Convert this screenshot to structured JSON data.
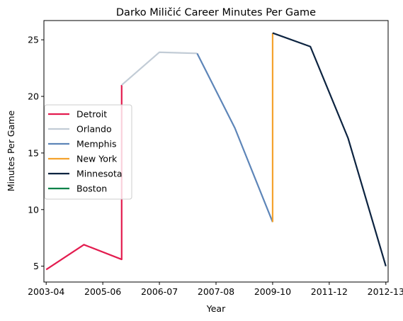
{
  "chart_data": {
    "type": "line",
    "title": "Darko Miličić Career Minutes Per Game",
    "xlabel": "Year",
    "ylabel": "Minutes Per Game",
    "x_ticks": [
      "2003-04",
      "2005-06",
      "2006-07",
      "2007-08",
      "2009-10",
      "2011-12",
      "2012-13"
    ],
    "y_ticks": [
      5,
      10,
      15,
      20,
      25
    ],
    "xlim": [
      -0.06,
      9.06
    ],
    "ylim": [
      3.6,
      26.7
    ],
    "grid": false,
    "legend_position": "center-left",
    "series": [
      {
        "name": "Detroit",
        "color": "#e31c4f",
        "points": [
          [
            0,
            4.7
          ],
          [
            1,
            6.9
          ],
          [
            2,
            5.6
          ],
          [
            2,
            21.0
          ]
        ]
      },
      {
        "name": "Orlando",
        "color": "#c2ccd6",
        "points": [
          [
            2,
            21.0
          ],
          [
            3,
            23.9
          ],
          [
            4,
            23.8
          ]
        ]
      },
      {
        "name": "Memphis",
        "color": "#5d85b8",
        "points": [
          [
            4,
            23.8
          ],
          [
            5,
            17.2
          ],
          [
            6,
            8.9
          ]
        ]
      },
      {
        "name": "New York",
        "color": "#f4a22d",
        "points": [
          [
            6,
            8.9
          ],
          [
            6,
            25.6
          ]
        ]
      },
      {
        "name": "Minnesota",
        "color": "#0c2340",
        "points": [
          [
            6,
            25.6
          ],
          [
            7,
            24.4
          ],
          [
            8,
            16.3
          ],
          [
            9,
            5.0
          ]
        ]
      },
      {
        "name": "Boston",
        "color": "#008248",
        "points": []
      }
    ]
  }
}
